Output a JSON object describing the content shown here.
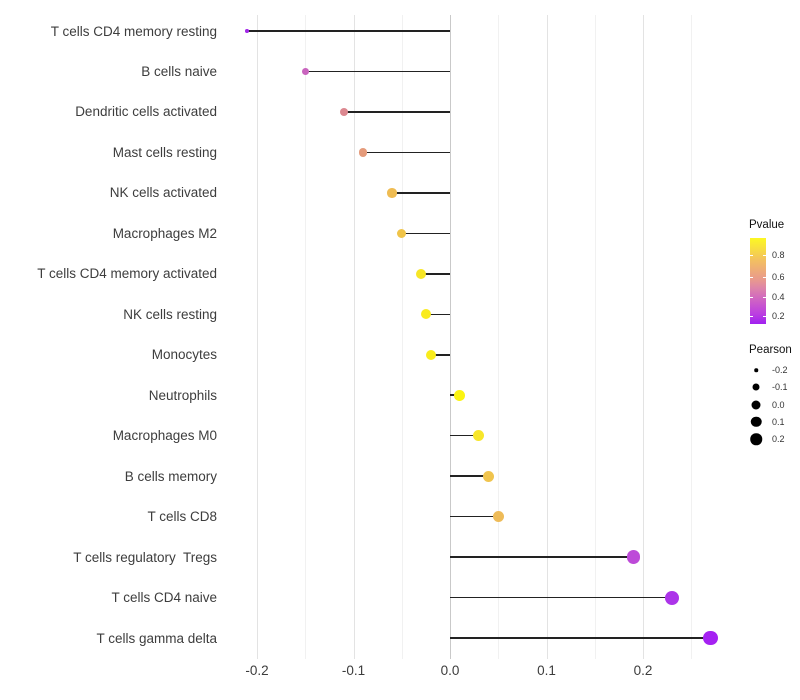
{
  "chart_data": {
    "type": "scatter",
    "subtype": "lollipop",
    "title": "",
    "xlabel": "",
    "ylabel": "",
    "categories": [
      "T cells CD4 memory resting",
      "B cells naive",
      "Dendritic cells activated",
      "Mast cells resting",
      "NK cells activated",
      "Macrophages M2",
      "T cells CD4 memory activated",
      "NK cells resting",
      "Monocytes",
      "Neutrophils",
      "Macrophages M0",
      "B cells memory",
      "T cells CD8",
      "T cells regulatory  Tregs",
      "T cells CD4 naive",
      "T cells gamma delta"
    ],
    "series": [
      {
        "name": "Pearson",
        "values": [
          -0.21,
          -0.15,
          -0.11,
          -0.09,
          -0.06,
          -0.05,
          -0.03,
          -0.025,
          -0.02,
          0.01,
          0.03,
          0.04,
          0.05,
          0.19,
          0.23,
          0.27
        ]
      }
    ],
    "point_colors": [
      "#A228E8",
      "#C964BE",
      "#DC8890",
      "#E59B7B",
      "#EFBC53",
      "#F0C449",
      "#F7E626",
      "#F9EB1E",
      "#F9EC1C",
      "#FBF411",
      "#F7E62A",
      "#F0C44E",
      "#EEBB58",
      "#BD4AD8",
      "#AC34E9",
      "#A522F2"
    ],
    "xlim": [
      -0.245,
      0.3
    ],
    "x_ticks": [
      {
        "label": "-0.2",
        "value": -0.2
      },
      {
        "label": "-0.1",
        "value": -0.1
      },
      {
        "label": "0.0",
        "value": 0.0
      },
      {
        "label": "0.1",
        "value": 0.1
      },
      {
        "label": "0.2",
        "value": 0.2
      }
    ],
    "minor_grid_values": [
      -0.15,
      -0.05,
      0.05,
      0.15,
      0.25
    ],
    "grid": "vertical major+minor, no axis lines",
    "legend_position": "right",
    "legend_pvalue": {
      "title": "Pvalue",
      "ticks": [
        {
          "label": "0.8",
          "frac_from_top": 0.2
        },
        {
          "label": "0.6",
          "frac_from_top": 0.455
        },
        {
          "label": "0.4",
          "frac_from_top": 0.685
        },
        {
          "label": "0.2",
          "frac_from_top": 0.91
        }
      ],
      "gradient_high_color": "#FCF823",
      "gradient_low_color": "#A020F0",
      "high_means": "high p-value (yellow)",
      "low_means": "low p-value (purple)"
    },
    "legend_pearson": {
      "title": "Pearson",
      "entries": [
        {
          "label": "-0.2",
          "value": -0.2
        },
        {
          "label": "-0.1",
          "value": -0.1
        },
        {
          "label": "0.0",
          "value": 0.0
        },
        {
          "label": "0.1",
          "value": 0.1
        },
        {
          "label": "0.2",
          "value": 0.2
        }
      ]
    }
  }
}
